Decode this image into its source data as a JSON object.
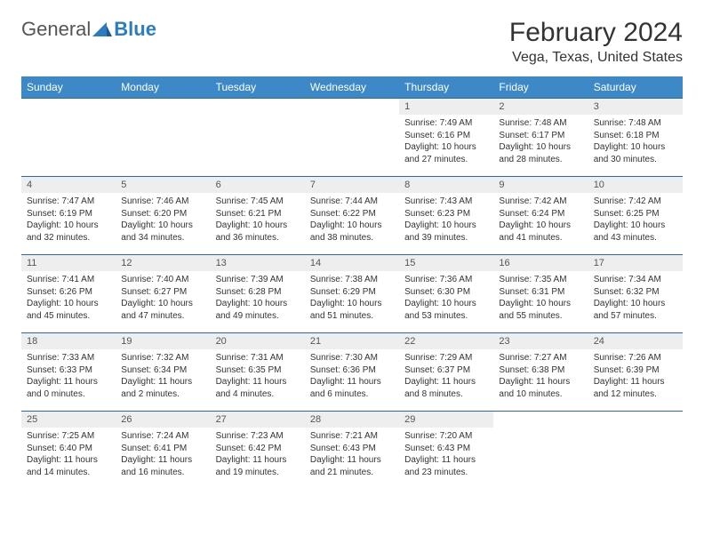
{
  "logo": {
    "text1": "General",
    "text2": "Blue"
  },
  "title": "February 2024",
  "location": "Vega, Texas, United States",
  "colors": {
    "header_bg": "#3d88c7",
    "header_text": "#ffffff",
    "daynum_bg": "#eeeeee",
    "border": "#2b6aa3",
    "logo_blue": "#2b7cc0"
  },
  "day_headers": [
    "Sunday",
    "Monday",
    "Tuesday",
    "Wednesday",
    "Thursday",
    "Friday",
    "Saturday"
  ],
  "weeks": [
    [
      null,
      null,
      null,
      null,
      {
        "n": "1",
        "sr": "Sunrise: 7:49 AM",
        "ss": "Sunset: 6:16 PM",
        "dl": "Daylight: 10 hours and 27 minutes."
      },
      {
        "n": "2",
        "sr": "Sunrise: 7:48 AM",
        "ss": "Sunset: 6:17 PM",
        "dl": "Daylight: 10 hours and 28 minutes."
      },
      {
        "n": "3",
        "sr": "Sunrise: 7:48 AM",
        "ss": "Sunset: 6:18 PM",
        "dl": "Daylight: 10 hours and 30 minutes."
      }
    ],
    [
      {
        "n": "4",
        "sr": "Sunrise: 7:47 AM",
        "ss": "Sunset: 6:19 PM",
        "dl": "Daylight: 10 hours and 32 minutes."
      },
      {
        "n": "5",
        "sr": "Sunrise: 7:46 AM",
        "ss": "Sunset: 6:20 PM",
        "dl": "Daylight: 10 hours and 34 minutes."
      },
      {
        "n": "6",
        "sr": "Sunrise: 7:45 AM",
        "ss": "Sunset: 6:21 PM",
        "dl": "Daylight: 10 hours and 36 minutes."
      },
      {
        "n": "7",
        "sr": "Sunrise: 7:44 AM",
        "ss": "Sunset: 6:22 PM",
        "dl": "Daylight: 10 hours and 38 minutes."
      },
      {
        "n": "8",
        "sr": "Sunrise: 7:43 AM",
        "ss": "Sunset: 6:23 PM",
        "dl": "Daylight: 10 hours and 39 minutes."
      },
      {
        "n": "9",
        "sr": "Sunrise: 7:42 AM",
        "ss": "Sunset: 6:24 PM",
        "dl": "Daylight: 10 hours and 41 minutes."
      },
      {
        "n": "10",
        "sr": "Sunrise: 7:42 AM",
        "ss": "Sunset: 6:25 PM",
        "dl": "Daylight: 10 hours and 43 minutes."
      }
    ],
    [
      {
        "n": "11",
        "sr": "Sunrise: 7:41 AM",
        "ss": "Sunset: 6:26 PM",
        "dl": "Daylight: 10 hours and 45 minutes."
      },
      {
        "n": "12",
        "sr": "Sunrise: 7:40 AM",
        "ss": "Sunset: 6:27 PM",
        "dl": "Daylight: 10 hours and 47 minutes."
      },
      {
        "n": "13",
        "sr": "Sunrise: 7:39 AM",
        "ss": "Sunset: 6:28 PM",
        "dl": "Daylight: 10 hours and 49 minutes."
      },
      {
        "n": "14",
        "sr": "Sunrise: 7:38 AM",
        "ss": "Sunset: 6:29 PM",
        "dl": "Daylight: 10 hours and 51 minutes."
      },
      {
        "n": "15",
        "sr": "Sunrise: 7:36 AM",
        "ss": "Sunset: 6:30 PM",
        "dl": "Daylight: 10 hours and 53 minutes."
      },
      {
        "n": "16",
        "sr": "Sunrise: 7:35 AM",
        "ss": "Sunset: 6:31 PM",
        "dl": "Daylight: 10 hours and 55 minutes."
      },
      {
        "n": "17",
        "sr": "Sunrise: 7:34 AM",
        "ss": "Sunset: 6:32 PM",
        "dl": "Daylight: 10 hours and 57 minutes."
      }
    ],
    [
      {
        "n": "18",
        "sr": "Sunrise: 7:33 AM",
        "ss": "Sunset: 6:33 PM",
        "dl": "Daylight: 11 hours and 0 minutes."
      },
      {
        "n": "19",
        "sr": "Sunrise: 7:32 AM",
        "ss": "Sunset: 6:34 PM",
        "dl": "Daylight: 11 hours and 2 minutes."
      },
      {
        "n": "20",
        "sr": "Sunrise: 7:31 AM",
        "ss": "Sunset: 6:35 PM",
        "dl": "Daylight: 11 hours and 4 minutes."
      },
      {
        "n": "21",
        "sr": "Sunrise: 7:30 AM",
        "ss": "Sunset: 6:36 PM",
        "dl": "Daylight: 11 hours and 6 minutes."
      },
      {
        "n": "22",
        "sr": "Sunrise: 7:29 AM",
        "ss": "Sunset: 6:37 PM",
        "dl": "Daylight: 11 hours and 8 minutes."
      },
      {
        "n": "23",
        "sr": "Sunrise: 7:27 AM",
        "ss": "Sunset: 6:38 PM",
        "dl": "Daylight: 11 hours and 10 minutes."
      },
      {
        "n": "24",
        "sr": "Sunrise: 7:26 AM",
        "ss": "Sunset: 6:39 PM",
        "dl": "Daylight: 11 hours and 12 minutes."
      }
    ],
    [
      {
        "n": "25",
        "sr": "Sunrise: 7:25 AM",
        "ss": "Sunset: 6:40 PM",
        "dl": "Daylight: 11 hours and 14 minutes."
      },
      {
        "n": "26",
        "sr": "Sunrise: 7:24 AM",
        "ss": "Sunset: 6:41 PM",
        "dl": "Daylight: 11 hours and 16 minutes."
      },
      {
        "n": "27",
        "sr": "Sunrise: 7:23 AM",
        "ss": "Sunset: 6:42 PM",
        "dl": "Daylight: 11 hours and 19 minutes."
      },
      {
        "n": "28",
        "sr": "Sunrise: 7:21 AM",
        "ss": "Sunset: 6:43 PM",
        "dl": "Daylight: 11 hours and 21 minutes."
      },
      {
        "n": "29",
        "sr": "Sunrise: 7:20 AM",
        "ss": "Sunset: 6:43 PM",
        "dl": "Daylight: 11 hours and 23 minutes."
      },
      null,
      null
    ]
  ]
}
